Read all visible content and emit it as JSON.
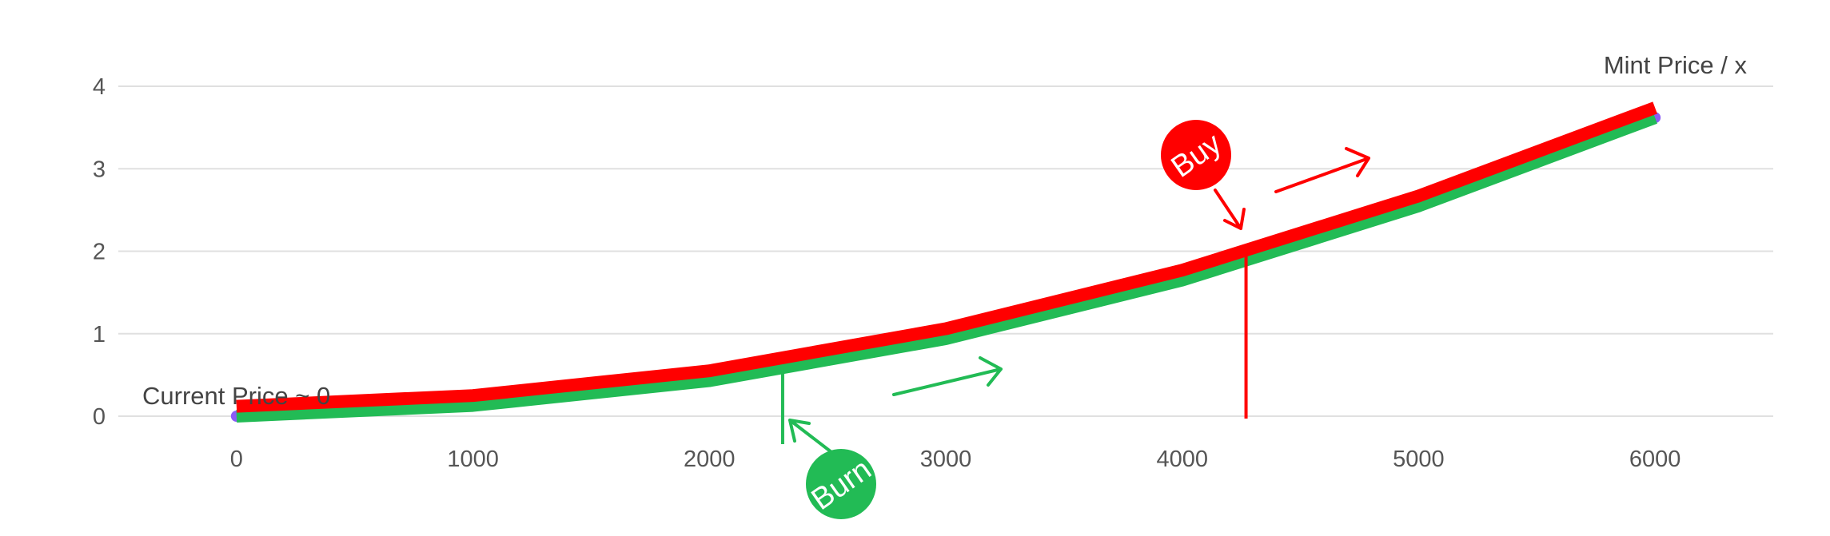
{
  "chart_data": {
    "type": "line",
    "title": "",
    "xlabel": "",
    "ylabel": "",
    "xlim": [
      -500,
      6500
    ],
    "ylim": [
      0,
      4
    ],
    "grid": true,
    "x_ticks": [
      0,
      1000,
      2000,
      3000,
      4000,
      5000,
      6000
    ],
    "y_ticks": [
      0,
      1,
      2,
      3,
      4
    ],
    "x": [
      0,
      1000,
      2000,
      3000,
      4000,
      5000,
      6000
    ],
    "series": [
      {
        "name": "",
        "color": "#8b5cf6",
        "values": [
          0.0,
          0.13,
          0.43,
          0.94,
          1.65,
          2.55,
          3.62
        ]
      },
      {
        "name": "",
        "color": "#22bb55",
        "values": [
          0.0,
          0.13,
          0.43,
          0.94,
          1.65,
          2.55,
          3.62
        ]
      },
      {
        "name": "",
        "color": "#ff0000",
        "values": [
          0.12,
          0.25,
          0.55,
          1.06,
          1.77,
          2.67,
          3.74
        ]
      }
    ],
    "annotations": {
      "top_right": "Mint Price / x",
      "bottom_left": "Current Price ~ 0",
      "buy_label": "Buy",
      "burn_label": "Burn",
      "buy_marker_x": 4270,
      "burn_marker_x": 2310
    },
    "colors": {
      "grid": "#e0e0e0",
      "buy": "#ff0000",
      "burn": "#22bb55",
      "dot": "#8b5cf6"
    }
  }
}
